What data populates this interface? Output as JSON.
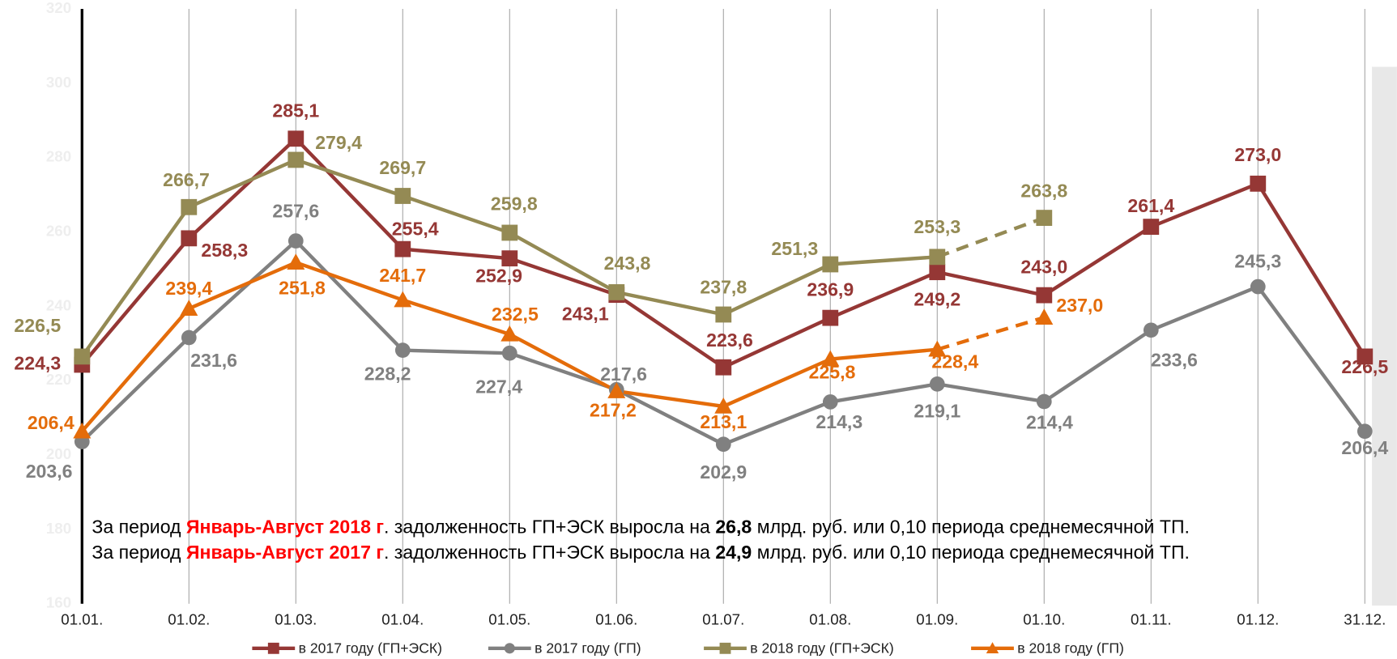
{
  "chart_data": {
    "type": "line",
    "categories": [
      "01.01.",
      "01.02.",
      "01.03.",
      "01.04.",
      "01.05.",
      "01.06.",
      "01.07.",
      "01.08.",
      "01.09.",
      "01.10.",
      "01.11.",
      "01.12.",
      "31.12."
    ],
    "ylim": [
      160,
      320
    ],
    "yticks": [
      160,
      180,
      200,
      220,
      240,
      260,
      280,
      300,
      320
    ],
    "grid": true,
    "legend": "bottom",
    "series": [
      {
        "name": "в 2017 году (ГП+ЭСК)",
        "color": "#953735",
        "marker": "square",
        "values": [
          224.3,
          258.3,
          285.1,
          255.4,
          252.9,
          243.1,
          223.6,
          236.9,
          249.2,
          243.0,
          261.4,
          273.0,
          226.5
        ],
        "value_labels": [
          "224,3",
          "258,3",
          "285,1",
          "255,4",
          "252,9",
          "243,1",
          "223,6",
          "236,9",
          "249,2",
          "243,0",
          "261,4",
          "273,0",
          "226,5"
        ]
      },
      {
        "name": "в 2017 году (ГП)",
        "color": "#808080",
        "marker": "circle",
        "values": [
          203.6,
          231.6,
          257.6,
          228.2,
          227.4,
          217.6,
          202.9,
          214.3,
          219.1,
          214.4,
          233.6,
          245.3,
          206.4
        ],
        "value_labels": [
          "203,6",
          "231,6",
          "257,6",
          "228,2",
          "227,4",
          "217,6",
          "202,9",
          "214,3",
          "219,1",
          "214,4",
          "233,6",
          "245,3",
          "206,4"
        ]
      },
      {
        "name": "в 2018 году (ГП+ЭСК)",
        "color": "#948a54",
        "marker": "square",
        "dash_from": 8,
        "values": [
          226.5,
          266.7,
          279.4,
          269.7,
          259.8,
          243.8,
          237.8,
          251.3,
          253.3,
          263.8,
          null,
          null,
          null
        ],
        "value_labels": [
          "226,5",
          "266,7",
          "279,4",
          "269,7",
          "259,8",
          "243,8",
          "237,8",
          "251,3",
          "253,3",
          "263,8",
          null,
          null,
          null
        ]
      },
      {
        "name": "в 2018 году (ГП)",
        "color": "#e46c0a",
        "marker": "triangle",
        "dash_from": 8,
        "values": [
          206.4,
          239.4,
          251.8,
          241.7,
          232.5,
          217.2,
          213.1,
          225.8,
          228.4,
          237.0,
          null,
          null,
          null
        ],
        "value_labels": [
          "206,4",
          "239,4",
          "251,8",
          "241,7",
          "232,5",
          "217,2",
          "213,1",
          "225,8",
          "228,4",
          "237,0",
          null,
          null,
          null
        ]
      }
    ],
    "annotations": [
      [
        "За период ",
        "Январь-Август 2018 г",
        ". задолженность ГП+ЭСК выросла на ",
        "26,8",
        " млрд. руб. или 0,10 периода среднемесячной ТП."
      ],
      [
        "За период ",
        "Январь-Август 2017 г",
        ". задолженность ГП+ЭСК выросла на ",
        "24,9",
        " млрд. руб. или 0,10 периода среднемесячной ТП."
      ]
    ]
  }
}
